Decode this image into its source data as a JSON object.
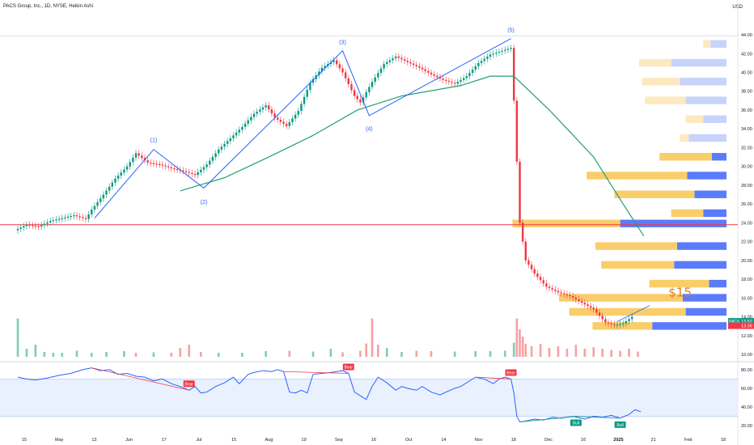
{
  "header": {
    "title": "PACS Group, Inc., 1D, NYSE, Heikin Ashi",
    "currency": "USD"
  },
  "price_tags": [
    {
      "label": "PACS",
      "value": "13.52",
      "color": "#089981"
    },
    {
      "value": "13.36",
      "color": "#f23645"
    }
  ],
  "chart_data": [
    {
      "type": "line",
      "chart": "Heikin Ashi daily candlestick chart with Elliott wave count and volume profile",
      "y_ticks": [
        "10.00",
        "12.00",
        "14.00",
        "16.00",
        "18.00",
        "20.00",
        "22.00",
        "24.00",
        "26.00",
        "28.00",
        "30.00",
        "32.00",
        "34.00",
        "36.00",
        "38.00",
        "40.00",
        "42.00",
        "44.00"
      ],
      "x_ticks": [
        "15",
        "May",
        "13",
        "Jun",
        "17",
        "Jul",
        "15",
        "Aug",
        "19",
        "Sep",
        "16",
        "Oct",
        "14",
        "Nov",
        "18",
        "Dec",
        "16",
        "2025",
        "21",
        "Feb",
        "18"
      ],
      "ylim": [
        9.4,
        46.5
      ],
      "close_path": [
        [
          0,
          23.2
        ],
        [
          4,
          23.8
        ],
        [
          8,
          23.6
        ],
        [
          12,
          24.2
        ],
        [
          16,
          24.5
        ],
        [
          20,
          24.8
        ],
        [
          24,
          24.4
        ],
        [
          26,
          25.4
        ],
        [
          30,
          27.0
        ],
        [
          34,
          28.7
        ],
        [
          38,
          30.0
        ],
        [
          41,
          31.4
        ],
        [
          45,
          30.4
        ],
        [
          49,
          30.2
        ],
        [
          53,
          29.8
        ],
        [
          57,
          29.5
        ],
        [
          61,
          29.1
        ],
        [
          65,
          30.2
        ],
        [
          69,
          31.8
        ],
        [
          73,
          33.0
        ],
        [
          77,
          34.2
        ],
        [
          81,
          35.6
        ],
        [
          85,
          36.5
        ],
        [
          88,
          35.2
        ],
        [
          92,
          34.3
        ],
        [
          96,
          35.9
        ],
        [
          100,
          38.9
        ],
        [
          104,
          40.5
        ],
        [
          108,
          41.3
        ],
        [
          111,
          40.0
        ],
        [
          115,
          37.5
        ],
        [
          117,
          36.8
        ],
        [
          121,
          39.0
        ],
        [
          125,
          40.9
        ],
        [
          129,
          41.7
        ],
        [
          133,
          41.1
        ],
        [
          137,
          40.5
        ],
        [
          141,
          39.8
        ],
        [
          145,
          39.2
        ],
        [
          149,
          38.8
        ],
        [
          153,
          39.6
        ],
        [
          157,
          41.0
        ],
        [
          161,
          41.9
        ],
        [
          165,
          42.3
        ],
        [
          168,
          42.6
        ],
        [
          169,
          37.0
        ],
        [
          171,
          24.0
        ],
        [
          173,
          20.0
        ],
        [
          176,
          18.6
        ],
        [
          180,
          17.2
        ],
        [
          184,
          16.6
        ],
        [
          188,
          16.2
        ],
        [
          192,
          15.5
        ],
        [
          196,
          14.8
        ],
        [
          200,
          13.4
        ],
        [
          203,
          13.1
        ],
        [
          206,
          13.3
        ],
        [
          209,
          14.0
        ]
      ],
      "series": [
        {
          "name": "Moving average",
          "color": "#22a06b",
          "values": [
            [
              55,
              27.4
            ],
            [
              70,
              28.8
            ],
            [
              85,
              31.0
            ],
            [
              100,
              33.3
            ],
            [
              115,
              36.0
            ],
            [
              130,
              37.5
            ],
            [
              150,
              38.6
            ],
            [
              160,
              39.6
            ],
            [
              168,
              39.6
            ],
            [
              180,
              36.0
            ],
            [
              195,
              31.0
            ],
            [
              205,
              26.0
            ],
            [
              212,
              22.6
            ]
          ]
        },
        {
          "name": "Elliott wave",
          "color": "#2962ff",
          "values": [
            [
              26,
              24.5
            ],
            [
              46,
              31.8
            ],
            [
              63,
              27.7
            ],
            [
              110,
              42.3
            ],
            [
              119,
              35.4
            ],
            [
              167,
              43.6
            ]
          ]
        }
      ],
      "wave_labels": [
        {
          "text": "(1)",
          "x": 46,
          "y": 32.6
        },
        {
          "text": "(2)",
          "x": 63,
          "y": 26.0
        },
        {
          "text": "(3)",
          "x": 110,
          "y": 43.0
        },
        {
          "text": "(4)",
          "x": 119,
          "y": 33.8
        },
        {
          "text": "(5)",
          "x": 167,
          "y": 44.3
        }
      ],
      "annotations": [
        {
          "text": "$15",
          "x": 222,
          "y": 16.0,
          "color": "#d9822b"
        },
        {
          "text": "",
          "line_y": 23.8,
          "color": "#f23645"
        }
      ],
      "volume_profile": {
        "bins": [
          {
            "price": 43.0,
            "up": 5,
            "down": 11
          },
          {
            "price": 41.0,
            "up": 22,
            "down": 38
          },
          {
            "price": 39.0,
            "up": 26,
            "down": 32
          },
          {
            "price": 37.0,
            "up": 28,
            "down": 28
          },
          {
            "price": 35.0,
            "up": 12,
            "down": 16
          },
          {
            "price": 33.0,
            "up": 6,
            "down": 26
          },
          {
            "price": 31.0,
            "up": 36,
            "down": 10
          },
          {
            "price": 29.0,
            "up": 69,
            "down": 27
          },
          {
            "price": 27.0,
            "up": 55,
            "down": 22
          },
          {
            "price": 25.0,
            "up": 22,
            "down": 16
          },
          {
            "price": 23.9,
            "up": 74,
            "down": 73
          },
          {
            "price": 21.5,
            "up": 56,
            "down": 34
          },
          {
            "price": 19.5,
            "up": 50,
            "down": 36
          },
          {
            "price": 17.5,
            "up": 41,
            "down": 12
          },
          {
            "price": 16.0,
            "up": 85,
            "down": 30
          },
          {
            "price": 14.5,
            "up": 80,
            "down": 28
          },
          {
            "price": 13.0,
            "up": 41,
            "down": 51
          }
        ],
        "max": 150
      }
    },
    {
      "type": "bar",
      "chart": "Volume",
      "x_ticks": [
        "15",
        "May",
        "13",
        "Jun",
        "17",
        "Jul",
        "15",
        "Aug",
        "19",
        "Sep",
        "16",
        "Oct",
        "14",
        "Nov",
        "18",
        "Dec",
        "16",
        "2025",
        "21",
        "Feb",
        "18"
      ],
      "bars": [
        {
          "x": 0,
          "v": 0.95,
          "up": true
        },
        {
          "x": 3,
          "v": 0.2,
          "up": true
        },
        {
          "x": 6,
          "v": 0.3,
          "up": true
        },
        {
          "x": 9,
          "v": 0.12,
          "up": true
        },
        {
          "x": 12,
          "v": 0.1,
          "up": true
        },
        {
          "x": 15,
          "v": 0.1,
          "up": true
        },
        {
          "x": 20,
          "v": 0.15,
          "up": true
        },
        {
          "x": 25,
          "v": 0.1,
          "up": true
        },
        {
          "x": 30,
          "v": 0.12,
          "up": true
        },
        {
          "x": 36,
          "v": 0.14,
          "up": true
        },
        {
          "x": 40,
          "v": 0.1,
          "up": false
        },
        {
          "x": 46,
          "v": 0.11,
          "up": true
        },
        {
          "x": 52,
          "v": 0.1,
          "up": false
        },
        {
          "x": 55,
          "v": 0.22,
          "up": false
        },
        {
          "x": 58,
          "v": 0.3,
          "up": false
        },
        {
          "x": 62,
          "v": 0.12,
          "up": false
        },
        {
          "x": 68,
          "v": 0.1,
          "up": true
        },
        {
          "x": 76,
          "v": 0.1,
          "up": true
        },
        {
          "x": 84,
          "v": 0.14,
          "up": true
        },
        {
          "x": 92,
          "v": 0.15,
          "up": false
        },
        {
          "x": 100,
          "v": 0.13,
          "up": true
        },
        {
          "x": 106,
          "v": 0.2,
          "up": true
        },
        {
          "x": 110,
          "v": 0.11,
          "up": false
        },
        {
          "x": 116,
          "v": 0.15,
          "up": false
        },
        {
          "x": 118,
          "v": 0.33,
          "up": false
        },
        {
          "x": 120,
          "v": 0.95,
          "up": false
        },
        {
          "x": 122,
          "v": 0.3,
          "up": false
        },
        {
          "x": 125,
          "v": 0.22,
          "up": true
        },
        {
          "x": 130,
          "v": 0.12,
          "up": true
        },
        {
          "x": 135,
          "v": 0.15,
          "up": false
        },
        {
          "x": 140,
          "v": 0.14,
          "up": false
        },
        {
          "x": 148,
          "v": 0.13,
          "up": true
        },
        {
          "x": 155,
          "v": 0.14,
          "up": true
        },
        {
          "x": 160,
          "v": 0.14,
          "up": true
        },
        {
          "x": 165,
          "v": 0.15,
          "up": true
        },
        {
          "x": 168,
          "v": 0.35,
          "up": true
        },
        {
          "x": 169,
          "v": 0.95,
          "up": false
        },
        {
          "x": 170,
          "v": 0.68,
          "up": false
        },
        {
          "x": 171,
          "v": 0.5,
          "up": false
        },
        {
          "x": 172,
          "v": 0.32,
          "up": false
        },
        {
          "x": 174,
          "v": 0.26,
          "up": false
        },
        {
          "x": 177,
          "v": 0.32,
          "up": false
        },
        {
          "x": 180,
          "v": 0.22,
          "up": false
        },
        {
          "x": 183,
          "v": 0.26,
          "up": false
        },
        {
          "x": 186,
          "v": 0.2,
          "up": false
        },
        {
          "x": 189,
          "v": 0.3,
          "up": false
        },
        {
          "x": 192,
          "v": 0.2,
          "up": false
        },
        {
          "x": 195,
          "v": 0.24,
          "up": false
        },
        {
          "x": 198,
          "v": 0.2,
          "up": false
        },
        {
          "x": 201,
          "v": 0.17,
          "up": false
        },
        {
          "x": 204,
          "v": 0.15,
          "up": false
        },
        {
          "x": 207,
          "v": 0.2,
          "up": false
        },
        {
          "x": 210,
          "v": 0.13,
          "up": false
        }
      ]
    },
    {
      "type": "line",
      "chart": "RSI oscillator",
      "y_ticks": [
        "20.00",
        "40.00",
        "60.00",
        "80.00"
      ],
      "ylim": [
        14,
        86
      ],
      "band": [
        30,
        70
      ],
      "values": [
        [
          0,
          72
        ],
        [
          3,
          70
        ],
        [
          6,
          69
        ],
        [
          10,
          71
        ],
        [
          14,
          74
        ],
        [
          18,
          76
        ],
        [
          22,
          80
        ],
        [
          25,
          82
        ],
        [
          28,
          79
        ],
        [
          31,
          80
        ],
        [
          34,
          75
        ],
        [
          37,
          76
        ],
        [
          40,
          73
        ],
        [
          43,
          72
        ],
        [
          46,
          68
        ],
        [
          49,
          70
        ],
        [
          52,
          65
        ],
        [
          55,
          62
        ],
        [
          58,
          58
        ],
        [
          60,
          62
        ],
        [
          62,
          55
        ],
        [
          64,
          56
        ],
        [
          67,
          62
        ],
        [
          70,
          66
        ],
        [
          73,
          72
        ],
        [
          75,
          65
        ],
        [
          78,
          75
        ],
        [
          80,
          77
        ],
        [
          83,
          79
        ],
        [
          86,
          78
        ],
        [
          88,
          80
        ],
        [
          90,
          78
        ],
        [
          92,
          56
        ],
        [
          94,
          55
        ],
        [
          96,
          58
        ],
        [
          98,
          55
        ],
        [
          100,
          75
        ],
        [
          103,
          76
        ],
        [
          106,
          77
        ],
        [
          108,
          78
        ],
        [
          110,
          79
        ],
        [
          112,
          76
        ],
        [
          114,
          56
        ],
        [
          116,
          52
        ],
        [
          118,
          48
        ],
        [
          120,
          62
        ],
        [
          122,
          72
        ],
        [
          125,
          66
        ],
        [
          128,
          58
        ],
        [
          130,
          62
        ],
        [
          132,
          60
        ],
        [
          135,
          58
        ],
        [
          137,
          62
        ],
        [
          140,
          56
        ],
        [
          143,
          53
        ],
        [
          145,
          56
        ],
        [
          148,
          60
        ],
        [
          150,
          62
        ],
        [
          153,
          68
        ],
        [
          155,
          72
        ],
        [
          158,
          70
        ],
        [
          161,
          65
        ],
        [
          163,
          70
        ],
        [
          165,
          72
        ],
        [
          167,
          70
        ],
        [
          168,
          55
        ],
        [
          169,
          30
        ],
        [
          170,
          24
        ],
        [
          172,
          25
        ],
        [
          175,
          27
        ],
        [
          178,
          26
        ],
        [
          181,
          29
        ],
        [
          184,
          28
        ],
        [
          188,
          30
        ],
        [
          192,
          27
        ],
        [
          195,
          30
        ],
        [
          198,
          29
        ],
        [
          201,
          31
        ],
        [
          204,
          28
        ],
        [
          207,
          32
        ],
        [
          209,
          37
        ],
        [
          211,
          35
        ]
      ],
      "divergence_lines": [
        {
          "from": [
            25,
            82
          ],
          "to": [
            58,
            58
          ],
          "color": "#f23645",
          "label": "Bear"
        },
        {
          "from": [
            90,
            78
          ],
          "to": [
            112,
            76
          ],
          "color": "#f23645",
          "label": "Bear"
        },
        {
          "from": [
            155,
            72
          ],
          "to": [
            167,
            70
          ],
          "color": "#f23645",
          "label": "Bear"
        },
        {
          "from": [
            170,
            24
          ],
          "to": [
            189,
            30
          ],
          "color": "#089981",
          "label": "Bull"
        },
        {
          "from": [
            189,
            30
          ],
          "to": [
            204,
            28
          ],
          "color": "#089981",
          "label": "Bull"
        }
      ]
    }
  ]
}
